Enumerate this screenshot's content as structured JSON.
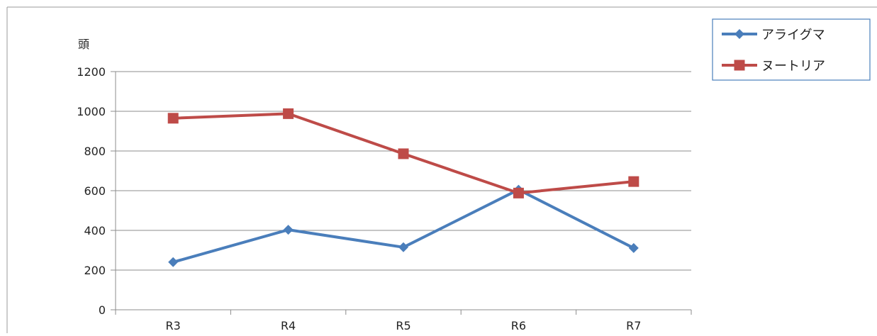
{
  "chart_data": {
    "type": "line",
    "title": "",
    "xlabel": "",
    "ylabel": "頭",
    "categories": [
      "R3",
      "R4",
      "R5",
      "R6",
      "R7"
    ],
    "y_ticks": [
      "0",
      "200",
      "400",
      "600",
      "800",
      "1000",
      "1200"
    ],
    "ylim": [
      0,
      1200
    ],
    "grid": true,
    "legend_position": "top-right",
    "series": [
      {
        "name": "アライグマ",
        "values": [
          240,
          403,
          315,
          605,
          311
        ],
        "color": "#4a7ebb",
        "marker": "diamond"
      },
      {
        "name": "ヌートリア",
        "values": [
          965,
          988,
          786,
          588,
          646
        ],
        "color": "#be4b48",
        "marker": "square"
      }
    ]
  }
}
